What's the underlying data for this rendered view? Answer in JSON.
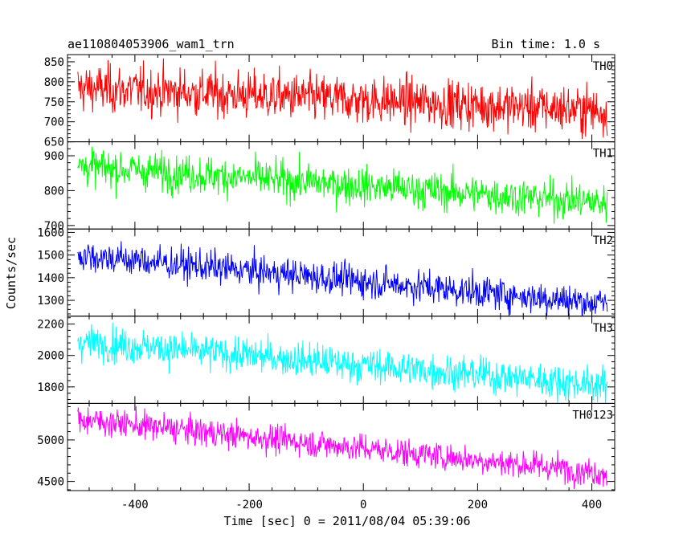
{
  "chart_data": {
    "type": "line",
    "title": "ae110804053906_wam1_trn",
    "subtitle": "Bin time: 1.0 s",
    "xlabel": "Time [sec] 0 = 2011/08/04 05:39:06",
    "ylabel": "Counts/sec",
    "xlim": [
      -518,
      440
    ],
    "x_range_data": [
      -500,
      427
    ],
    "x_ticks": [
      -400,
      -200,
      0,
      200,
      400
    ],
    "grid": false,
    "panels": [
      {
        "name": "TH0",
        "color": "#ff0000",
        "ylim": [
          650,
          868
        ],
        "y_ticks": [
          650,
          700,
          750,
          800,
          850
        ],
        "trend_start": 785,
        "trend_end": 728,
        "noise": 30
      },
      {
        "name": "TH1",
        "color": "#00ff00",
        "ylim": [
          690,
          940
        ],
        "y_ticks": [
          700,
          800,
          900
        ],
        "trend_start": 870,
        "trend_end": 765,
        "noise": 27
      },
      {
        "name": "TH2",
        "color": "#0000ff",
        "ylim": [
          1230,
          1615
        ],
        "y_ticks": [
          1300,
          1400,
          1500,
          1600
        ],
        "trend_start": 1500,
        "trend_end": 1285,
        "noise": 36
      },
      {
        "name": "TH3",
        "color": "#00ffff",
        "ylim": [
          1695,
          2250
        ],
        "y_ticks": [
          1800,
          2000,
          2200
        ],
        "trend_start": 2090,
        "trend_end": 1810,
        "noise": 55
      },
      {
        "name": "TH0123",
        "color": "#ff00ff",
        "ylim": [
          4390,
          5440
        ],
        "y_ticks": [
          4500,
          5000
        ],
        "trend_start": 5250,
        "trend_end": 4600,
        "noise": 85
      }
    ]
  }
}
